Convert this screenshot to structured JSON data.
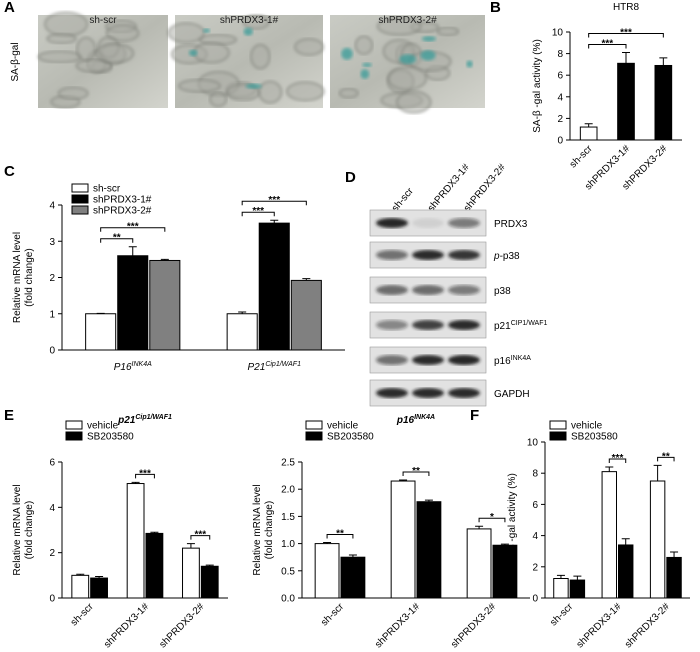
{
  "panel_labels": [
    "A",
    "B",
    "C",
    "D",
    "E",
    "F"
  ],
  "micrographs": {
    "stain": "SA-β-gal",
    "labels": [
      "sh-scr",
      "shPRDX3-1#",
      "shPRDX3-2#"
    ]
  },
  "western_blot": {
    "columns": [
      "sh-scr",
      "shPRDX3-1#",
      "shPRDX3-2#"
    ],
    "rows": [
      {
        "text": "PRDX3"
      },
      {
        "prefix": "p-",
        "text": "p38"
      },
      {
        "text": "p38"
      },
      {
        "text": "p21",
        "sup": "CIP1/WAF1"
      },
      {
        "text": "p16",
        "sup": "INK4A"
      },
      {
        "text": "GAPDH"
      }
    ]
  },
  "chart_data": [
    {
      "type": "bar",
      "title": "HTR8",
      "ylabel": [
        "SA-β -gal activity (%)"
      ],
      "categories": [
        "sh-scr",
        "shPRDX3-1#",
        "shPRDX3-2#"
      ],
      "values": [
        1.2,
        7.1,
        6.9
      ],
      "errors": [
        0.3,
        1.0,
        0.7
      ],
      "colors": [
        "#ffffff",
        "#000000",
        "#000000"
      ],
      "ylim": [
        0,
        10
      ],
      "yticks": [
        0,
        2,
        4,
        6,
        8,
        10
      ],
      "significance": [
        {
          "text": "***",
          "between": [
            "sh-scr",
            "shPRDX3-1#"
          ]
        },
        {
          "text": "***",
          "between": [
            "sh-scr",
            "shPRDX3-2#"
          ]
        }
      ]
    },
    {
      "type": "grouped_bar",
      "ylabel": [
        "Relative mRNA level",
        "(fold change)"
      ],
      "categories": [
        "P16",
        "P21"
      ],
      "category_superscripts": [
        "INK4A",
        "Cip1/WAF1"
      ],
      "series": [
        {
          "name": "sh-scr",
          "color": "#ffffff",
          "values": [
            1.0,
            1.0
          ],
          "errors": [
            0.01,
            0.05
          ]
        },
        {
          "name": "shPRDX3-1#",
          "color": "#000000",
          "values": [
            2.6,
            3.5
          ],
          "errors": [
            0.25,
            0.08
          ]
        },
        {
          "name": "shPRDX3-2#",
          "color": "#808080",
          "values": [
            2.47,
            1.92
          ],
          "errors": [
            0.03,
            0.05
          ]
        }
      ],
      "ylim": [
        0,
        4
      ],
      "yticks": [
        0,
        1,
        2,
        3,
        4
      ],
      "legend": "upper left",
      "significance": [
        {
          "text": "**",
          "category": "P16",
          "between": [
            "sh-scr",
            "shPRDX3-1#"
          ]
        },
        {
          "text": "***",
          "category": "P16",
          "between": [
            "sh-scr",
            "shPRDX3-2#"
          ]
        },
        {
          "text": "***",
          "category": "P21",
          "between": [
            "sh-scr",
            "shPRDX3-1#"
          ]
        },
        {
          "text": "***",
          "category": "P21",
          "between": [
            "sh-scr",
            "shPRDX3-2#"
          ]
        }
      ]
    },
    {
      "type": "grouped_bar",
      "title": "p21",
      "title_superscript": "Cip1/WAF1",
      "ylabel": [
        "Relative mRNA level",
        "(fold change)"
      ],
      "categories": [
        "sh-scr",
        "shPRDX3-1#",
        "shPRDX3-2#"
      ],
      "series": [
        {
          "name": "vehicle",
          "color": "#ffffff",
          "values": [
            1.0,
            5.05,
            2.2
          ],
          "errors": [
            0.05,
            0.05,
            0.2
          ]
        },
        {
          "name": "SB203580",
          "color": "#000000",
          "values": [
            0.88,
            2.85,
            1.4
          ],
          "errors": [
            0.07,
            0.05,
            0.05
          ]
        }
      ],
      "ylim": [
        0,
        6
      ],
      "yticks": [
        0,
        2,
        4,
        6
      ],
      "legend": "upper left",
      "significance": [
        {
          "text": "***",
          "category": "shPRDX3-1#",
          "between": [
            "vehicle",
            "SB203580"
          ]
        },
        {
          "text": "***",
          "category": "shPRDX3-2#",
          "between": [
            "vehicle",
            "SB203580"
          ]
        }
      ]
    },
    {
      "type": "grouped_bar",
      "title": "p16",
      "title_superscript": "INK4A",
      "ylabel": [
        "Relative mRNA level",
        "(fold change)"
      ],
      "categories": [
        "sh-scr",
        "shPRDX3-1#",
        "shPRDX3-2#"
      ],
      "series": [
        {
          "name": "vehicle",
          "color": "#ffffff",
          "values": [
            1.0,
            2.15,
            1.27
          ],
          "errors": [
            0.02,
            0.02,
            0.05
          ]
        },
        {
          "name": "SB203580",
          "color": "#000000",
          "values": [
            0.75,
            1.77,
            0.97
          ],
          "errors": [
            0.04,
            0.03,
            0.02
          ]
        }
      ],
      "ylim": [
        0,
        2.5
      ],
      "yticks": [
        {
          "value": 0,
          "label": "0.0"
        },
        0.5,
        {
          "value": 1,
          "label": "1.0"
        },
        1.5,
        {
          "value": 2,
          "label": "2.0"
        },
        2.5
      ],
      "legend": "upper left",
      "significance": [
        {
          "text": "**",
          "category": "sh-scr",
          "between": [
            "vehicle",
            "SB203580"
          ]
        },
        {
          "text": "**",
          "category": "shPRDX3-1#",
          "between": [
            "vehicle",
            "SB203580"
          ]
        },
        {
          "text": "*",
          "category": "shPRDX3-2#",
          "between": [
            "vehicle",
            "SB203580"
          ]
        }
      ]
    },
    {
      "type": "grouped_bar",
      "ylabel": [
        "SA-β -gal activity (%)"
      ],
      "categories": [
        "sh-scr",
        "shPRDX3-1#",
        "shPRDX3-2#"
      ],
      "series": [
        {
          "name": "vehicle",
          "color": "#ffffff",
          "values": [
            1.25,
            8.1,
            7.5
          ],
          "errors": [
            0.2,
            0.3,
            1.0
          ]
        },
        {
          "name": "SB203580",
          "color": "#000000",
          "values": [
            1.15,
            3.4,
            2.6
          ],
          "errors": [
            0.25,
            0.4,
            0.35
          ]
        }
      ],
      "ylim": [
        0,
        10
      ],
      "yticks": [
        0,
        2,
        4,
        6,
        8,
        10
      ],
      "legend": "upper left",
      "significance": [
        {
          "text": "***",
          "category": "shPRDX3-1#",
          "between": [
            "vehicle",
            "SB203580"
          ]
        },
        {
          "text": "**",
          "category": "shPRDX3-2#",
          "between": [
            "vehicle",
            "SB203580"
          ]
        }
      ]
    }
  ]
}
